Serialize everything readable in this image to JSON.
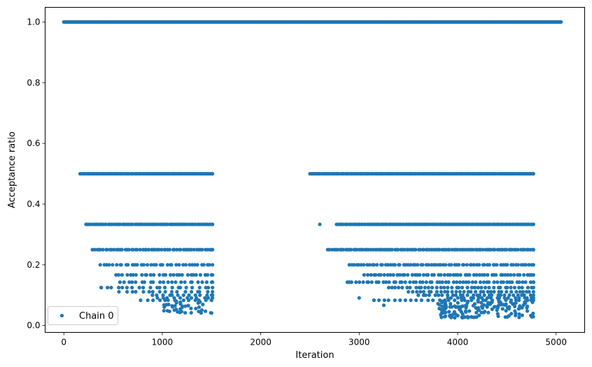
{
  "chart_data": {
    "type": "scatter",
    "title": "",
    "xlabel": "Iteration",
    "ylabel": "Acceptance ratio",
    "xlim": [
      -190,
      5290
    ],
    "ylim": [
      -0.0227,
      1.0483
    ],
    "xticks": [
      0,
      1000,
      2000,
      3000,
      4000,
      5000
    ],
    "xtick_labels": [
      "0",
      "1000",
      "2000",
      "3000",
      "4000",
      "5000"
    ],
    "yticks": [
      0.0,
      0.2,
      0.4,
      0.6,
      0.8,
      1.0
    ],
    "ytick_labels": [
      "0.0",
      "0.2",
      "0.4",
      "0.6",
      "0.8",
      "1.0"
    ],
    "grid": false,
    "legend": {
      "position": "lower-left",
      "entries": [
        "Chain 0"
      ]
    },
    "series": [
      {
        "name": "Chain 0",
        "color": "#1f77b4",
        "marker": "circle",
        "note_levels": [
          1.0,
          0.5,
          0.3333,
          0.25,
          0.2,
          0.1667,
          0.1429,
          0.125,
          0.1111,
          0.1,
          0.0909,
          0.0833
        ],
        "segments": [
          {
            "y": 1.0,
            "x_start": 0,
            "x_end": 5050,
            "step": 8
          },
          {
            "y": 0.5,
            "x_start": 165,
            "x_end": 1510,
            "step": 12
          },
          {
            "y": 0.5,
            "x_start": 2500,
            "x_end": 4770,
            "step": 12
          },
          {
            "y": 0.3333,
            "x_start": 225,
            "x_end": 1510,
            "step": 16
          },
          {
            "y": 0.3333,
            "x_start": 2770,
            "x_end": 4770,
            "step": 14
          },
          {
            "y": 0.25,
            "x_start": 290,
            "x_end": 1510,
            "step": 22
          },
          {
            "y": 0.25,
            "x_start": 2680,
            "x_end": 4770,
            "step": 20
          },
          {
            "y": 0.2,
            "x_start": 370,
            "x_end": 1510,
            "step": 32
          },
          {
            "y": 0.2,
            "x_start": 2900,
            "x_end": 4770,
            "step": 26
          },
          {
            "y": 0.1667,
            "x_start": 530,
            "x_end": 1510,
            "step": 36
          },
          {
            "y": 0.1667,
            "x_start": 3050,
            "x_end": 4770,
            "step": 30
          },
          {
            "y": 0.1429,
            "x_start": 570,
            "x_end": 1510,
            "step": 44
          },
          {
            "y": 0.1429,
            "x_start": 2900,
            "x_end": 4770,
            "step": 34
          },
          {
            "y": 0.125,
            "x_start": 380,
            "x_end": 1510,
            "step": 55
          },
          {
            "y": 0.125,
            "x_start": 3300,
            "x_end": 4770,
            "step": 38
          },
          {
            "y": 0.1111,
            "x_start": 560,
            "x_end": 1510,
            "step": 60
          },
          {
            "y": 0.1111,
            "x_start": 3500,
            "x_end": 4770,
            "step": 40
          },
          {
            "y": 0.1,
            "x_start": 900,
            "x_end": 1510,
            "step": 55
          },
          {
            "y": 0.1,
            "x_start": 3600,
            "x_end": 4770,
            "step": 42
          },
          {
            "y": 0.0909,
            "x_start": 950,
            "x_end": 1510,
            "step": 60
          },
          {
            "y": 0.0909,
            "x_start": 3900,
            "x_end": 4770,
            "step": 45
          },
          {
            "y": 0.0833,
            "x_start": 780,
            "x_end": 1500,
            "step": 60
          },
          {
            "y": 0.0833,
            "x_start": 3150,
            "x_end": 4770,
            "step": 55
          }
        ],
        "clusters": [
          {
            "x_start": 1000,
            "x_end": 1510,
            "y_min": 0.04,
            "y_max": 0.08,
            "count": 40,
            "seed": 11
          },
          {
            "x_start": 3800,
            "x_end": 4770,
            "y_min": 0.025,
            "y_max": 0.08,
            "count": 150,
            "seed": 23
          }
        ],
        "points": [
          {
            "x": 2600,
            "y": 0.3333
          },
          {
            "x": 2880,
            "y": 0.1429
          },
          {
            "x": 3000,
            "y": 0.0909
          },
          {
            "x": 3150,
            "y": 0.0833
          },
          {
            "x": 3250,
            "y": 0.0667
          },
          {
            "x": 380,
            "y": 0.125
          }
        ]
      }
    ]
  }
}
